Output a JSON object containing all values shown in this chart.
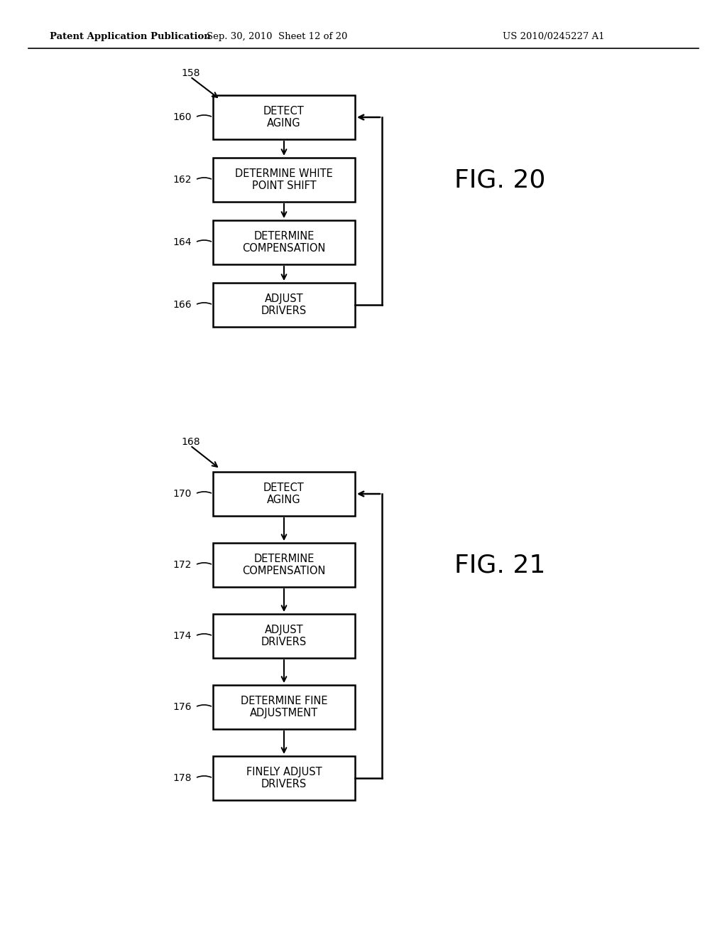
{
  "header_left": "Patent Application Publication",
  "header_mid": "Sep. 30, 2010  Sheet 12 of 20",
  "header_right": "US 2010/0245227 A1",
  "fig20_label": "FIG. 20",
  "fig21_label": "FIG. 21",
  "fig20_ref": "158",
  "fig21_ref": "168",
  "fig20_boxes": [
    {
      "label": "DETECT\nAGING",
      "ref": "160"
    },
    {
      "label": "DETERMINE WHITE\nPOINT SHIFT",
      "ref": "162"
    },
    {
      "label": "DETERMINE\nCOMPENSATION",
      "ref": "164"
    },
    {
      "label": "ADJUST\nDRIVERS",
      "ref": "166"
    }
  ],
  "fig21_boxes": [
    {
      "label": "DETECT\nAGING",
      "ref": "170"
    },
    {
      "label": "DETERMINE\nCOMPENSATION",
      "ref": "172"
    },
    {
      "label": "ADJUST\nDRIVERS",
      "ref": "174"
    },
    {
      "label": "DETERMINE FINE\nADJUSTMENT",
      "ref": "176"
    },
    {
      "label": "FINELY ADJUST\nDRIVERS",
      "ref": "178"
    }
  ],
  "bg_color": "#ffffff",
  "text_color": "#000000",
  "line_color": "#000000"
}
